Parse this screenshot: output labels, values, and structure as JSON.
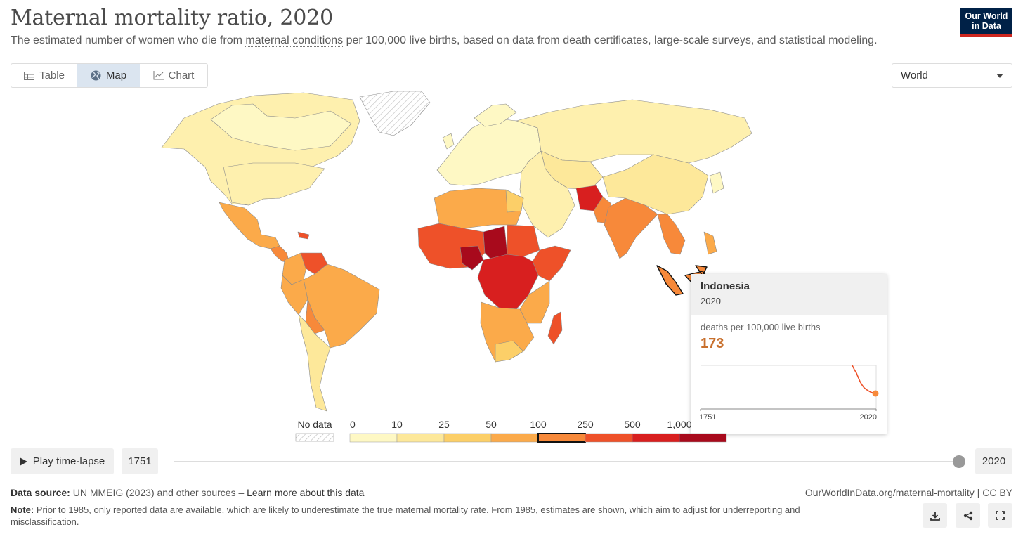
{
  "header": {
    "title": "Maternal mortality ratio, 2020",
    "subtitle_pre": "The estimated number of women who die from ",
    "subtitle_link": "maternal conditions",
    "subtitle_post": " per 100,000 live births, based on data from death certificates, large-scale surveys, and statistical modeling.",
    "logo_line1": "Our World",
    "logo_line2": "in Data"
  },
  "tabs": [
    {
      "label": "Table",
      "icon": "table-icon"
    },
    {
      "label": "Map",
      "icon": "globe-icon",
      "active": true
    },
    {
      "label": "Chart",
      "icon": "line-chart-icon"
    }
  ],
  "region_select": {
    "value": "World"
  },
  "colors": {
    "scale": [
      "#fef8c4",
      "#fde89a",
      "#fccf68",
      "#fbaa4a",
      "#f7893a",
      "#ee5129",
      "#d81f1f",
      "#a80a1c"
    ],
    "no_data": "#e8e8e8",
    "highlight": "#f7893a"
  },
  "legend": {
    "no_data_label": "No data",
    "ticks": [
      "0",
      "10",
      "25",
      "50",
      "100",
      "250",
      "500",
      "1,000"
    ],
    "highlighted_bin": "100–250"
  },
  "tooltip": {
    "country": "Indonesia",
    "year": "2020",
    "metric": "deaths per 100,000 live births",
    "value": "173",
    "range_start": "1751",
    "range_end": "2020"
  },
  "timeline": {
    "play_label": "Play time-lapse",
    "start_year": "1751",
    "end_year": "2020",
    "position": 1.0
  },
  "footer": {
    "source_label": "Data source:",
    "source_text": " UN MMEIG (2023) and other sources – ",
    "source_link": "Learn more about this data",
    "url": "OurWorldInData.org/maternal-mortality | CC BY",
    "note_label": "Note:",
    "note_text": " Prior to 1985, only reported data are available, which are likely to underestimate the true maternal mortality rate. From 1985, estimates are shown, which aim to adjust for underreporting and misclassification."
  },
  "actions": [
    {
      "icon": "download-icon"
    },
    {
      "icon": "share-icon"
    },
    {
      "icon": "fullscreen-icon"
    }
  ]
}
